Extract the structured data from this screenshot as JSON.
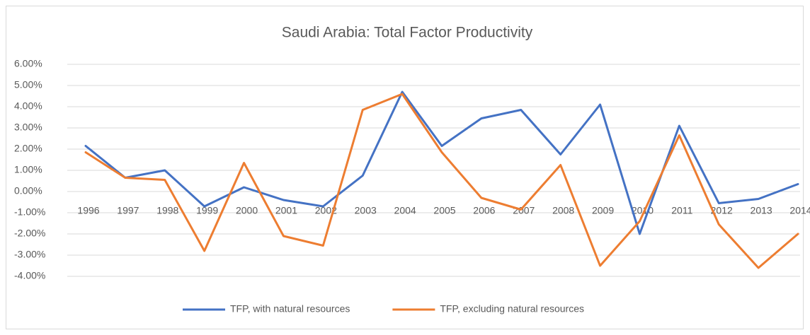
{
  "chart_data": {
    "type": "line",
    "title": "Saudi Arabia: Total Factor Productivity",
    "categories": [
      "1996",
      "1997",
      "1998",
      "1999",
      "2000",
      "2001",
      "2002",
      "2003",
      "2004",
      "2005",
      "2006",
      "2007",
      "2008",
      "2009",
      "2010",
      "2011",
      "2012",
      "2013",
      "2014"
    ],
    "series": [
      {
        "name": "TFP, with natural resources",
        "color": "#4472c4",
        "values": [
          2.15,
          0.65,
          1.0,
          -0.7,
          0.2,
          -0.4,
          -0.7,
          0.75,
          4.7,
          2.15,
          3.45,
          3.85,
          1.75,
          4.1,
          -2.0,
          3.1,
          -0.55,
          -0.35,
          0.35
        ]
      },
      {
        "name": "TFP, excluding natural resources",
        "color": "#ed7d31",
        "values": [
          1.85,
          0.65,
          0.55,
          -2.8,
          1.35,
          -2.1,
          -2.55,
          3.85,
          4.6,
          1.85,
          -0.3,
          -0.85,
          1.25,
          -3.5,
          -1.4,
          2.65,
          -1.55,
          -3.6,
          -2.0
        ]
      }
    ],
    "ylim": [
      -4,
      6
    ],
    "yticks": [
      {
        "value": -4,
        "label": "-4.00%"
      },
      {
        "value": -3,
        "label": "-3.00%"
      },
      {
        "value": -2,
        "label": "-2.00%"
      },
      {
        "value": -1,
        "label": "-1.00%"
      },
      {
        "value": 0,
        "label": "0.00%"
      },
      {
        "value": 1,
        "label": "1.00%"
      },
      {
        "value": 2,
        "label": "2.00%"
      },
      {
        "value": 3,
        "label": "3.00%"
      },
      {
        "value": 4,
        "label": "4.00%"
      },
      {
        "value": 5,
        "label": "5.00%"
      },
      {
        "value": 6,
        "label": "6.00%"
      }
    ],
    "grid": true,
    "legend": "bottom"
  }
}
